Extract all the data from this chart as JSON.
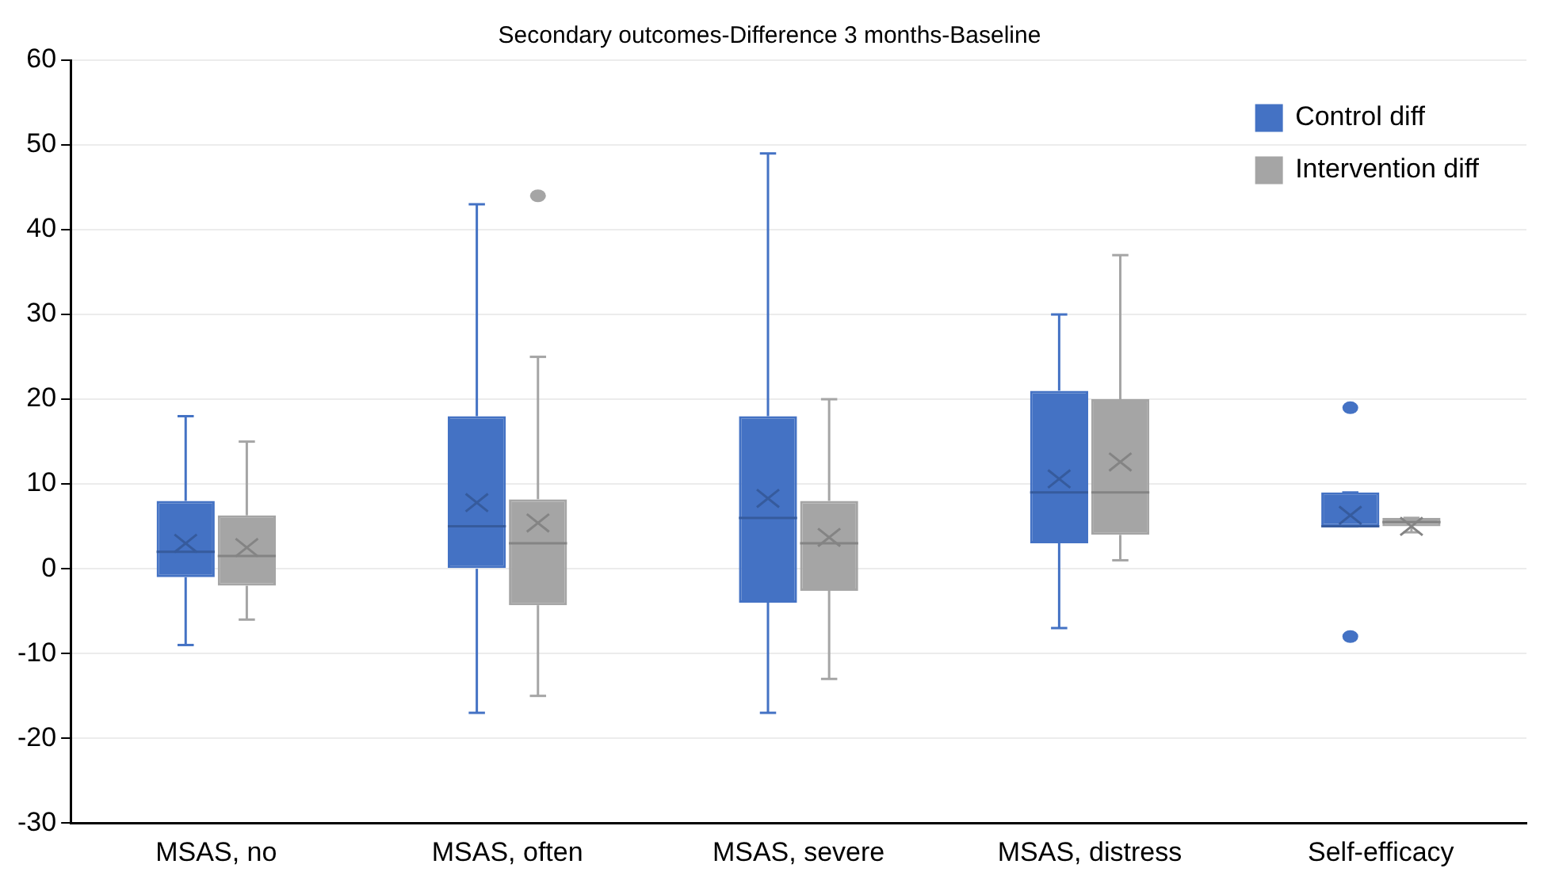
{
  "chart_data": {
    "type": "box",
    "title": "Secondary outcomes-Difference 3 months-Baseline",
    "categories": [
      "MSAS, no",
      "MSAS, often",
      "MSAS, severe",
      "MSAS, distress",
      "Self-efficacy"
    ],
    "series": [
      {
        "name": "Control diff",
        "color": "#4472c4",
        "boxes": [
          {
            "low": -9,
            "q1": -1,
            "median": 2,
            "q3": 8,
            "high": 18,
            "mean": 3
          },
          {
            "low": -17,
            "q1": 0,
            "median": 5,
            "q3": 18,
            "high": 43,
            "mean": 7.8
          },
          {
            "low": -17,
            "q1": -4,
            "median": 6,
            "q3": 18,
            "high": 49,
            "mean": 8.3
          },
          {
            "low": -7,
            "q1": 3,
            "median": 9,
            "q3": 21,
            "high": 30,
            "mean": 10.6
          },
          {
            "low": 5,
            "q1": 5,
            "median": 5,
            "q3": 9,
            "high": 9,
            "mean": 6.3,
            "outliers": [
              19,
              -8
            ]
          }
        ]
      },
      {
        "name": "Intervention diff",
        "color": "#a5a5a5",
        "boxes": [
          {
            "low": -6,
            "q1": -2,
            "median": 1.5,
            "q3": 6.3,
            "high": 15,
            "mean": 2.5
          },
          {
            "low": -15,
            "q1": -4.3,
            "median": 3,
            "q3": 8.2,
            "high": 25,
            "mean": 5.4,
            "outliers": [
              44
            ]
          },
          {
            "low": -13,
            "q1": -2.6,
            "median": 3,
            "q3": 8,
            "high": 20,
            "mean": 3.7
          },
          {
            "low": 1,
            "q1": 4,
            "median": 9,
            "q3": 20,
            "high": 37,
            "mean": 12.6
          },
          {
            "low": 4.3,
            "q1": 5,
            "median": 5.5,
            "q3": 6,
            "high": 6,
            "mean": 5
          }
        ]
      }
    ],
    "ylim": [
      -30,
      60
    ],
    "yticks": [
      -30,
      -20,
      -10,
      0,
      10,
      20,
      30,
      40,
      50,
      60
    ],
    "grid": "y",
    "legend": "top right"
  }
}
